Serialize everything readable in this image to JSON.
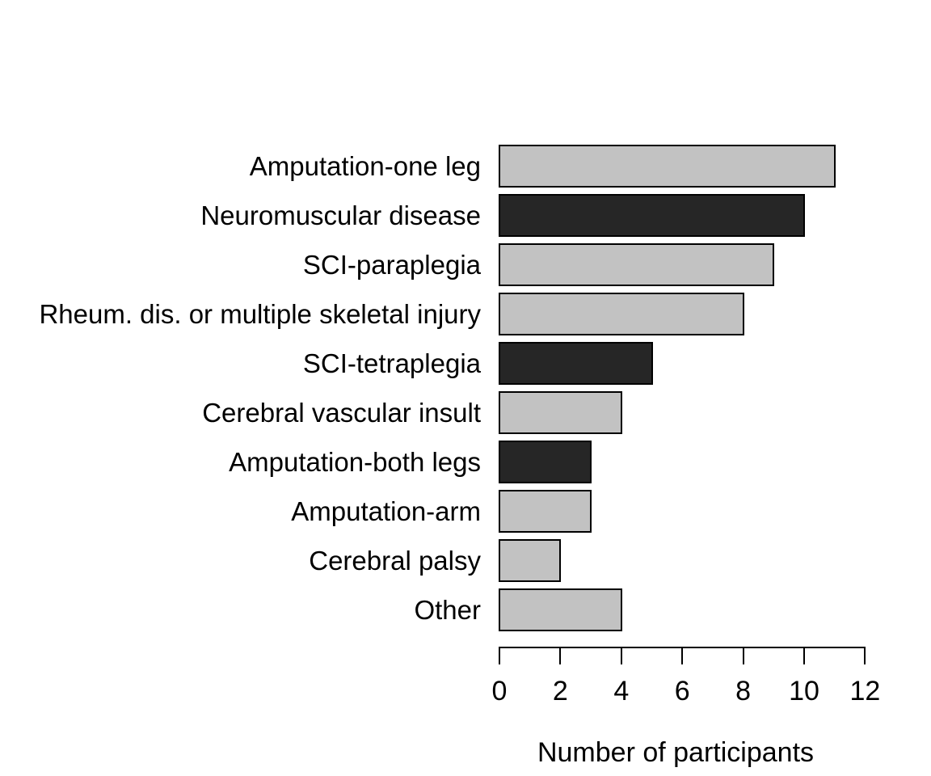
{
  "figure": {
    "background_color": "#ffffff",
    "text_color": "#000000"
  },
  "chart_data": {
    "type": "bar",
    "orientation": "horizontal",
    "title": "",
    "xlabel": "Number of participants",
    "ylabel": "",
    "xlim": [
      0,
      12
    ],
    "x_ticks": [
      0,
      2,
      4,
      6,
      8,
      10,
      12
    ],
    "grid": false,
    "legend_position": "none",
    "bar_border_color": "#000000",
    "palette": {
      "light_gray": "#c2c2c2",
      "dark_gray": "#262626"
    },
    "categories": [
      "Amputation-one leg",
      "Neuromuscular disease",
      "SCI-paraplegia",
      "Rheum. dis. or multiple skeletal injury",
      "SCI-tetraplegia",
      "Cerebral vascular insult",
      "Amputation-both legs",
      "Amputation-arm",
      "Cerebral palsy",
      "Other"
    ],
    "values": [
      11,
      10,
      9,
      8,
      5,
      4,
      3,
      3,
      2,
      4
    ],
    "bar_colors": [
      "#c2c2c2",
      "#262626",
      "#c2c2c2",
      "#c2c2c2",
      "#262626",
      "#c2c2c2",
      "#262626",
      "#c2c2c2",
      "#c2c2c2",
      "#c2c2c2"
    ]
  }
}
